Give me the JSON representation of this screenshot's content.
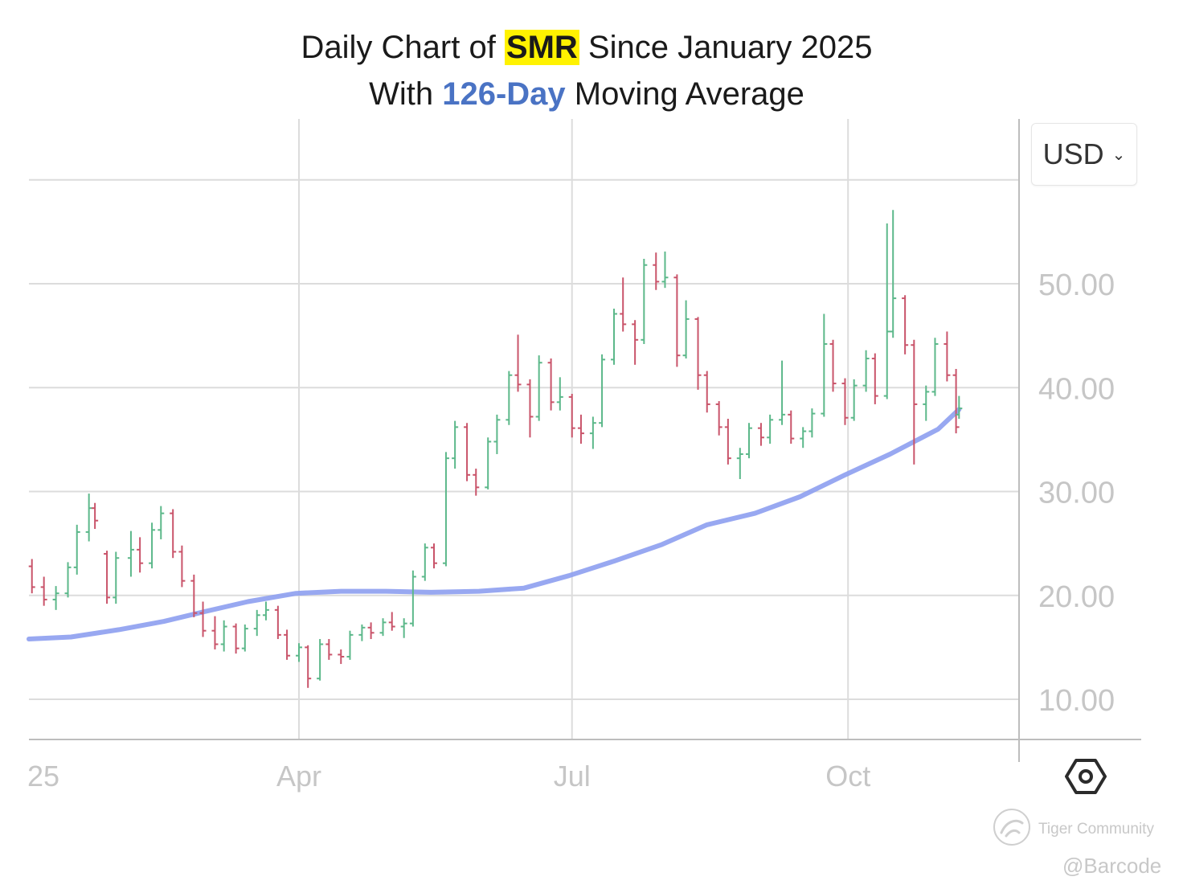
{
  "title": {
    "line1_prefix": "Daily Chart of ",
    "ticker": "SMR",
    "line1_suffix": " Since January 2025",
    "line2_prefix": "With ",
    "ma_label": "126-Day",
    "line2_suffix": " Moving Average"
  },
  "currency": {
    "label": "USD"
  },
  "watermark": {
    "brand": "Tiger Community",
    "handle": "@Barcode"
  },
  "icons": {
    "settings": "gear-hexagon-icon",
    "brand": "tiger-logo-icon",
    "currency_dropdown": "chevron-down-icon"
  },
  "colors": {
    "up": "#5cb88a",
    "down": "#c9546a",
    "ma": "#8d9ff0",
    "grid": "#dcdcdc",
    "axis_text": "#c6c6c6",
    "ticker_highlight": "#fff200",
    "ma_title": "#4a73c4"
  },
  "chart_data": {
    "type": "ohlc",
    "title": "Daily Chart of SMR Since January 2025 With 126-Day Moving Average",
    "ylim": [
      6,
      66
    ],
    "y_ticks": [
      "10.00",
      "20.00",
      "30.00",
      "40.00",
      "50.00"
    ],
    "x_ticks": [
      "25",
      "Apr",
      "Jul",
      "Oct"
    ],
    "grid": true,
    "price_axis": "right",
    "series": [
      {
        "name": "SMR",
        "kind": "ohlc_bars",
        "points": [
          [
            "2025-01-02",
            22.8,
            23.5,
            20.2,
            20.8
          ],
          [
            "2025-01-06",
            20.8,
            21.8,
            19.0,
            19.6
          ],
          [
            "2025-01-10",
            19.6,
            20.9,
            18.6,
            20.2
          ],
          [
            "2025-01-14",
            20.2,
            23.2,
            19.8,
            22.7
          ],
          [
            "2025-01-17",
            22.7,
            26.8,
            22.0,
            26.1
          ],
          [
            "2025-01-21",
            26.1,
            29.8,
            25.2,
            28.4
          ],
          [
            "2025-01-23",
            28.4,
            28.9,
            26.4,
            27.2
          ],
          [
            "2025-01-27",
            24.0,
            24.3,
            19.2,
            19.8
          ],
          [
            "2025-01-30",
            19.8,
            24.2,
            19.2,
            23.6
          ],
          [
            "2025-02-04",
            23.6,
            26.2,
            21.8,
            24.4
          ],
          [
            "2025-02-07",
            24.4,
            25.6,
            22.2,
            23.1
          ],
          [
            "2025-02-11",
            23.1,
            27.0,
            22.6,
            26.3
          ],
          [
            "2025-02-14",
            26.3,
            28.6,
            25.4,
            27.9
          ],
          [
            "2025-02-18",
            27.9,
            28.3,
            23.6,
            24.2
          ],
          [
            "2025-02-21",
            24.2,
            24.8,
            20.8,
            21.4
          ],
          [
            "2025-02-25",
            21.4,
            22.0,
            17.9,
            18.3
          ],
          [
            "2025-02-28",
            18.3,
            19.4,
            16.0,
            16.6
          ],
          [
            "2025-03-04",
            16.6,
            18.0,
            14.8,
            15.3
          ],
          [
            "2025-03-07",
            15.3,
            17.6,
            14.6,
            17.0
          ],
          [
            "2025-03-11",
            17.0,
            17.3,
            14.4,
            14.9
          ],
          [
            "2025-03-14",
            14.9,
            17.2,
            14.6,
            16.8
          ],
          [
            "2025-03-18",
            16.8,
            18.6,
            16.1,
            18.1
          ],
          [
            "2025-03-21",
            18.1,
            19.4,
            17.6,
            18.6
          ],
          [
            "2025-03-25",
            18.6,
            19.0,
            15.8,
            16.2
          ],
          [
            "2025-03-28",
            16.2,
            16.7,
            13.8,
            14.2
          ],
          [
            "2025-04-01",
            14.2,
            15.4,
            13.6,
            15.0
          ],
          [
            "2025-04-04",
            15.0,
            15.2,
            11.1,
            12.0
          ],
          [
            "2025-04-08",
            12.0,
            15.8,
            11.8,
            15.3
          ],
          [
            "2025-04-11",
            15.3,
            15.8,
            13.8,
            14.3
          ],
          [
            "2025-04-15",
            14.3,
            14.8,
            13.4,
            14.1
          ],
          [
            "2025-04-18",
            14.1,
            16.6,
            13.8,
            16.2
          ],
          [
            "2025-04-22",
            16.2,
            17.2,
            15.6,
            16.9
          ],
          [
            "2025-04-25",
            16.9,
            17.4,
            15.8,
            16.4
          ],
          [
            "2025-04-29",
            16.4,
            17.8,
            16.1,
            17.4
          ],
          [
            "2025-05-02",
            17.4,
            18.4,
            16.6,
            17.0
          ],
          [
            "2025-05-06",
            17.0,
            17.8,
            15.9,
            17.3
          ],
          [
            "2025-05-09",
            17.3,
            22.4,
            17.0,
            21.8
          ],
          [
            "2025-05-13",
            21.8,
            25.0,
            21.4,
            24.6
          ],
          [
            "2025-05-16",
            24.6,
            25.0,
            22.6,
            23.1
          ],
          [
            "2025-05-20",
            23.1,
            33.8,
            22.8,
            33.2
          ],
          [
            "2025-05-23",
            33.2,
            36.8,
            32.2,
            36.2
          ],
          [
            "2025-05-27",
            36.2,
            36.6,
            31.0,
            31.6
          ],
          [
            "2025-05-30",
            31.6,
            32.2,
            29.6,
            30.4
          ],
          [
            "2025-06-03",
            30.4,
            35.2,
            30.2,
            34.8
          ],
          [
            "2025-06-06",
            34.8,
            37.4,
            33.6,
            36.9
          ],
          [
            "2025-06-10",
            36.9,
            41.6,
            36.4,
            41.2
          ],
          [
            "2025-06-13",
            41.2,
            45.1,
            39.6,
            40.3
          ],
          [
            "2025-06-17",
            40.3,
            40.8,
            35.2,
            37.2
          ],
          [
            "2025-06-20",
            37.2,
            43.1,
            36.8,
            42.4
          ],
          [
            "2025-06-24",
            42.4,
            42.8,
            37.8,
            38.6
          ],
          [
            "2025-06-27",
            38.6,
            41.0,
            37.8,
            39.1
          ],
          [
            "2025-07-01",
            39.1,
            39.4,
            35.2,
            36.1
          ],
          [
            "2025-07-04",
            36.1,
            37.4,
            34.6,
            35.6
          ],
          [
            "2025-07-08",
            35.6,
            37.2,
            34.1,
            36.6
          ],
          [
            "2025-07-11",
            36.6,
            43.2,
            36.2,
            42.7
          ],
          [
            "2025-07-15",
            42.7,
            47.6,
            42.2,
            47.1
          ],
          [
            "2025-07-18",
            47.1,
            50.6,
            45.4,
            46.1
          ],
          [
            "2025-07-22",
            46.1,
            46.5,
            42.2,
            44.6
          ],
          [
            "2025-07-25",
            44.6,
            52.4,
            44.2,
            51.8
          ],
          [
            "2025-07-29",
            51.8,
            53.0,
            49.4,
            50.2
          ],
          [
            "2025-08-01",
            50.2,
            53.1,
            49.6,
            50.6
          ],
          [
            "2025-08-05",
            50.6,
            50.9,
            42.0,
            43.1
          ],
          [
            "2025-08-08",
            43.1,
            48.4,
            42.8,
            46.6
          ],
          [
            "2025-08-12",
            46.6,
            46.8,
            39.8,
            41.2
          ],
          [
            "2025-08-15",
            41.2,
            41.6,
            37.6,
            38.4
          ],
          [
            "2025-08-19",
            38.4,
            38.7,
            35.4,
            36.2
          ],
          [
            "2025-08-22",
            36.2,
            37.0,
            32.6,
            33.2
          ],
          [
            "2025-08-26",
            33.2,
            34.2,
            31.2,
            33.6
          ],
          [
            "2025-08-29",
            33.6,
            36.6,
            33.2,
            36.1
          ],
          [
            "2025-09-02",
            36.1,
            36.6,
            34.4,
            35.2
          ],
          [
            "2025-09-05",
            35.2,
            37.4,
            34.6,
            36.9
          ],
          [
            "2025-09-09",
            36.9,
            42.6,
            36.4,
            37.4
          ],
          [
            "2025-09-12",
            37.4,
            37.8,
            34.6,
            35.1
          ],
          [
            "2025-09-16",
            35.1,
            36.2,
            34.2,
            35.8
          ],
          [
            "2025-09-19",
            35.8,
            38.0,
            35.2,
            37.5
          ],
          [
            "2025-09-23",
            37.5,
            47.1,
            37.2,
            44.2
          ],
          [
            "2025-09-26",
            44.2,
            44.6,
            39.6,
            40.4
          ],
          [
            "2025-09-30",
            40.4,
            40.9,
            36.4,
            37.1
          ],
          [
            "2025-10-03",
            37.1,
            40.8,
            36.8,
            40.2
          ],
          [
            "2025-10-07",
            40.2,
            43.6,
            39.6,
            42.8
          ],
          [
            "2025-10-10",
            42.8,
            43.3,
            38.4,
            39.2
          ],
          [
            "2025-10-14",
            39.2,
            55.8,
            38.9,
            45.4
          ],
          [
            "2025-10-16",
            45.4,
            57.1,
            44.8,
            48.6
          ],
          [
            "2025-10-20",
            48.6,
            48.9,
            43.2,
            44.1
          ],
          [
            "2025-10-23",
            44.1,
            44.6,
            32.6,
            38.4
          ],
          [
            "2025-10-27",
            38.4,
            40.2,
            36.8,
            39.6
          ],
          [
            "2025-10-30",
            39.6,
            44.8,
            39.2,
            44.2
          ],
          [
            "2025-11-03",
            44.2,
            45.4,
            40.6,
            41.2
          ],
          [
            "2025-11-06",
            41.2,
            41.8,
            35.6,
            36.2
          ],
          [
            "2025-11-07",
            37.4,
            39.2,
            37.0,
            38.0
          ]
        ]
      },
      {
        "name": "126-Day",
        "kind": "line",
        "points": [
          [
            "2025-01-01",
            15.8
          ],
          [
            "2025-01-15",
            16.0
          ],
          [
            "2025-01-31",
            16.7
          ],
          [
            "2025-02-15",
            17.5
          ],
          [
            "2025-02-28",
            18.4
          ],
          [
            "2025-03-15",
            19.4
          ],
          [
            "2025-03-31",
            20.2
          ],
          [
            "2025-04-15",
            20.4
          ],
          [
            "2025-04-30",
            20.4
          ],
          [
            "2025-05-15",
            20.3
          ],
          [
            "2025-05-31",
            20.4
          ],
          [
            "2025-06-15",
            20.7
          ],
          [
            "2025-06-30",
            21.9
          ],
          [
            "2025-07-15",
            23.3
          ],
          [
            "2025-07-31",
            24.9
          ],
          [
            "2025-08-15",
            26.8
          ],
          [
            "2025-08-31",
            27.9
          ],
          [
            "2025-09-15",
            29.5
          ],
          [
            "2025-09-30",
            31.6
          ],
          [
            "2025-10-15",
            33.6
          ],
          [
            "2025-10-31",
            36.0
          ],
          [
            "2025-11-07",
            37.9
          ]
        ]
      }
    ]
  }
}
